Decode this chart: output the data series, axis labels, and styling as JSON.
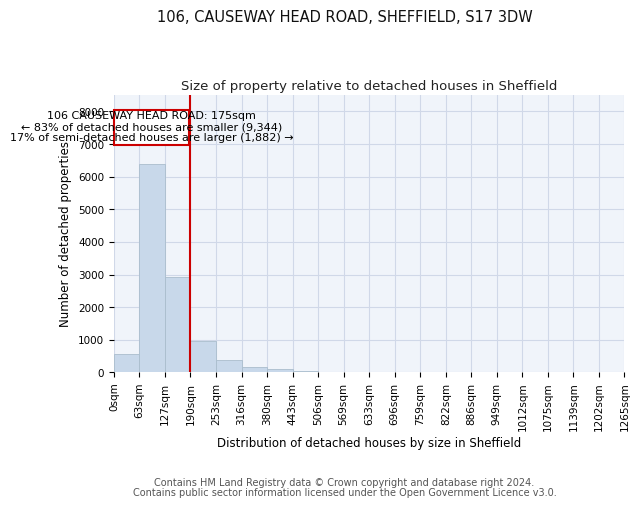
{
  "title": "106, CAUSEWAY HEAD ROAD, SHEFFIELD, S17 3DW",
  "subtitle": "Size of property relative to detached houses in Sheffield",
  "xlabel": "Distribution of detached houses by size in Sheffield",
  "ylabel": "Number of detached properties",
  "bar_color": "#c8d8ea",
  "bar_edge_color": "#aabdcd",
  "grid_color": "#d0d8e8",
  "background_color": "#ffffff",
  "plot_bg_color": "#f0f4fa",
  "annotation_line_color": "#cc0000",
  "annotation_box_color": "#cc0000",
  "annotation_text_color": "#000000",
  "annotation_bg": "#ffffff",
  "bin_labels": [
    "0sqm",
    "63sqm",
    "127sqm",
    "190sqm",
    "253sqm",
    "316sqm",
    "380sqm",
    "443sqm",
    "506sqm",
    "569sqm",
    "633sqm",
    "696sqm",
    "759sqm",
    "822sqm",
    "886sqm",
    "949sqm",
    "1012sqm",
    "1075sqm",
    "1139sqm",
    "1202sqm",
    "1265sqm"
  ],
  "bar_heights": [
    570,
    6380,
    2930,
    970,
    380,
    170,
    95,
    55,
    0,
    0,
    0,
    0,
    0,
    0,
    0,
    0,
    0,
    0,
    0,
    0
  ],
  "ylim": [
    0,
    8500
  ],
  "yticks": [
    0,
    1000,
    2000,
    3000,
    4000,
    5000,
    6000,
    7000,
    8000
  ],
  "annotation_title": "106 CAUSEWAY HEAD ROAD: 175sqm",
  "annotation_line1": "← 83% of detached houses are smaller (9,344)",
  "annotation_line2": "17% of semi-detached houses are larger (1,882) →",
  "footer_line1": "Contains HM Land Registry data © Crown copyright and database right 2024.",
  "footer_line2": "Contains public sector information licensed under the Open Government Licence v3.0.",
  "title_fontsize": 10.5,
  "subtitle_fontsize": 9.5,
  "axis_label_fontsize": 8.5,
  "tick_fontsize": 7.5,
  "annotation_fontsize": 8,
  "footer_fontsize": 7
}
